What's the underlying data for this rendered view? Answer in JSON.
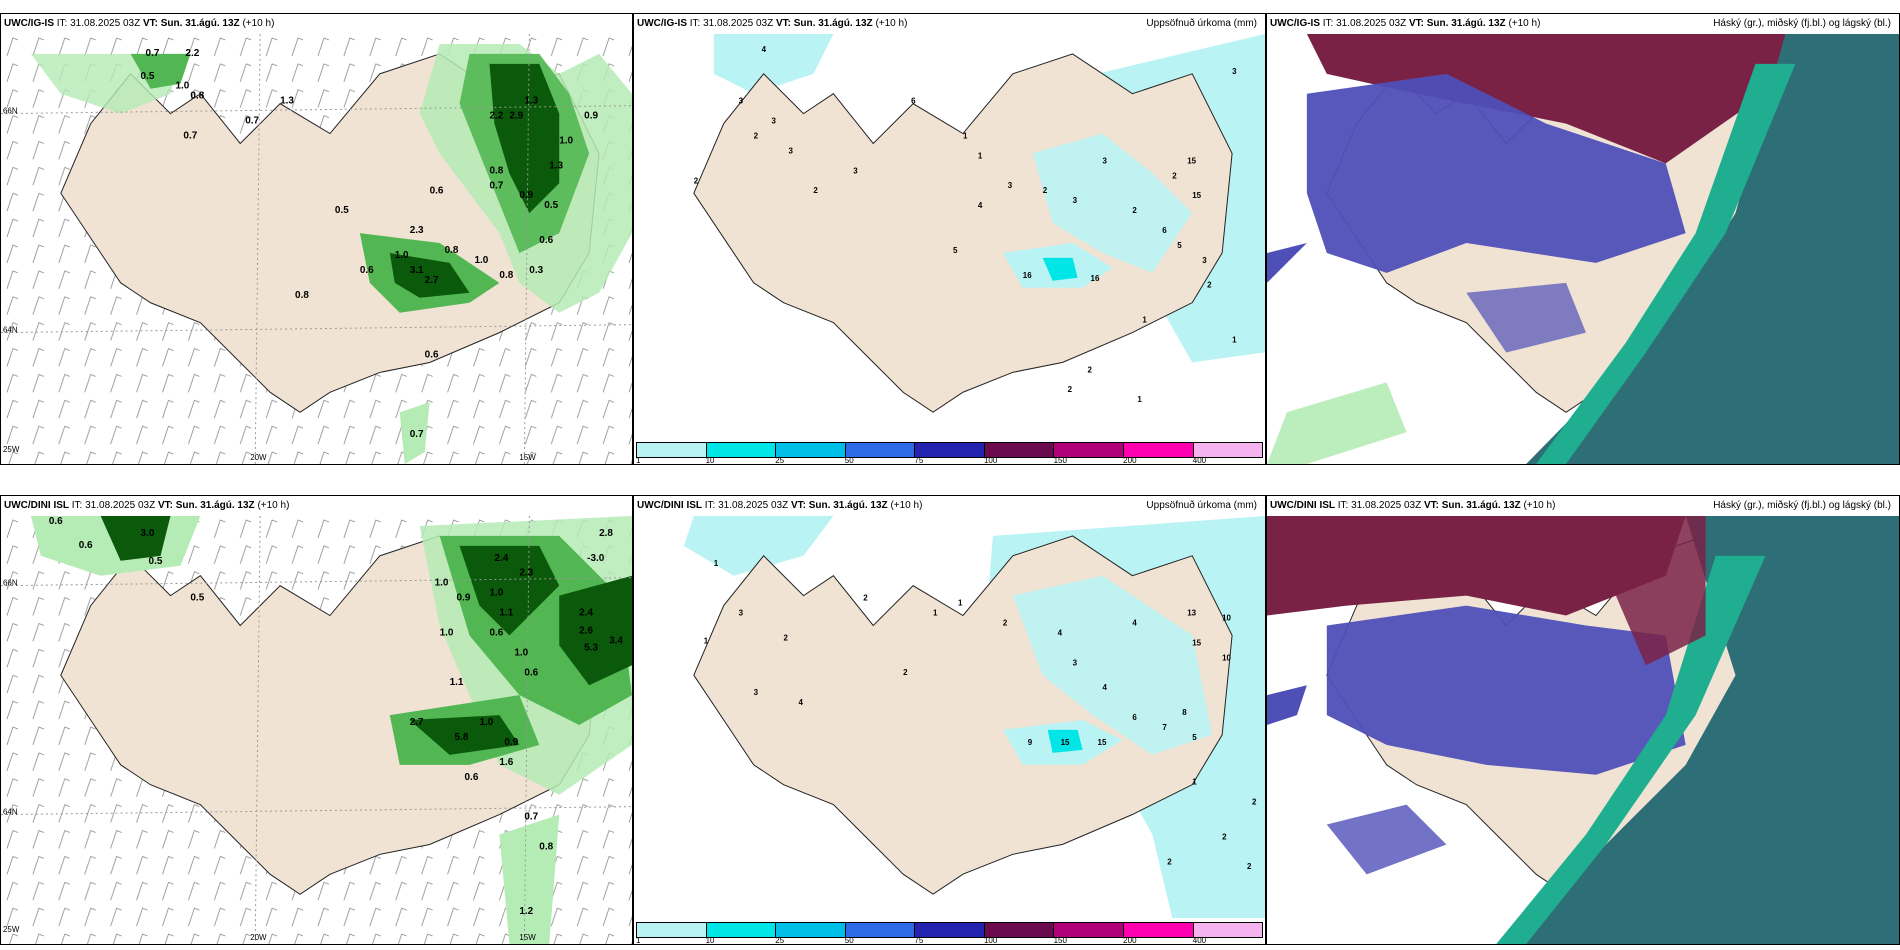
{
  "colors": {
    "land": "#f0e3d4",
    "precip_light": "#b9f3f3",
    "precip_mid": "#00e6e6",
    "green_light": "#b5ebb5",
    "green_mid": "#52b752",
    "green_dark": "#0b5a0b",
    "cloud_high": "#7a2246",
    "cloud_mid": "#4f4fb8",
    "cloud_low": "#2e6f77",
    "teal": "#1fae8f"
  },
  "rows": [
    {
      "model": "UWC/IG-IS",
      "it_label": "IT:",
      "it_value": "31.08.2025 03Z",
      "vt_label": "VT:",
      "vt_value": "Sun. 31.ágú. 13Z",
      "lead": "(+10 h)",
      "precip_title": "Uppsöfnuð úrkoma (mm)",
      "cloud_title": "Háský (gr.), miðský (fj.bl.) og lágský (bl.)",
      "axis_labels": {
        "lat1": "66N",
        "lat2": "64N",
        "lon1": "25W",
        "lon2": "20W",
        "lon3": "15W"
      },
      "wind_values": [
        "0.7",
        "2.2",
        "0.5",
        "1.0",
        "0.8",
        "0.7",
        "0.7",
        "0.5",
        "1.3",
        "1.3",
        "2.2",
        "2.9",
        "0.9",
        "1.0",
        "0.8",
        "0.7",
        "0.6",
        "0.5",
        "0.9",
        "1.3",
        "2.3",
        "0.6",
        "0.8",
        "1.0",
        "3.1",
        "2.7",
        "0.6",
        "1.0",
        "0.8",
        "0.3",
        "0.8",
        "0.6",
        "0.7"
      ],
      "precip_values": [
        "4",
        "6",
        "3",
        "3",
        "2",
        "2",
        "3",
        "3",
        "2",
        "1",
        "1",
        "3",
        "2",
        "4",
        "5",
        "3",
        "3",
        "2",
        "2",
        "16",
        "16",
        "15",
        "15",
        "6",
        "5",
        "3",
        "3",
        "2",
        "2",
        "1",
        "2",
        "1",
        "1"
      ],
      "colorbar_ticks": [
        "1",
        "10",
        "25",
        "50",
        "75",
        "100",
        "150",
        "200",
        "400"
      ]
    },
    {
      "model": "UWC/DINI ISL",
      "it_label": "IT:",
      "it_value": "31.08.2025 03Z",
      "vt_label": "VT:",
      "vt_value": "Sun. 31.ágú. 13Z",
      "lead": "(+10 h)",
      "precip_title": "Uppsöfnuð úrkoma (mm)",
      "cloud_title": "Háský (gr.), miðský (fj.bl.) og lágský (bl.)",
      "axis_labels": {
        "lat1": "66N",
        "lat2": "64N",
        "lon1": "25W",
        "lon2": "20W",
        "lon3": "15W"
      },
      "wind_values": [
        "0.6",
        "3.0",
        "0.6",
        "0.5",
        "0.5",
        "1.0",
        "0.9",
        "2.4",
        "2.3",
        "1.0",
        "1.1",
        "2.8",
        "-3.0",
        "1.0",
        "0.6",
        "2.4",
        "2.6",
        "5.3",
        "3.4",
        "1.0",
        "1.1",
        "0.6",
        "2.7",
        "5.8",
        "1.0",
        "0.9",
        "0.6",
        "0.7",
        "0.8",
        "1.2",
        "1.6"
      ],
      "precip_values": [
        "1",
        "1",
        "3",
        "2",
        "2",
        "3",
        "4",
        "2",
        "1",
        "1",
        "2",
        "4",
        "4",
        "3",
        "4",
        "13",
        "10",
        "15",
        "10",
        "9",
        "15",
        "15",
        "6",
        "7",
        "8",
        "5",
        "1",
        "2",
        "2",
        "2",
        "2"
      ],
      "colorbar_ticks": [
        "1",
        "10",
        "25",
        "50",
        "75",
        "100",
        "150",
        "200",
        "400"
      ]
    }
  ]
}
